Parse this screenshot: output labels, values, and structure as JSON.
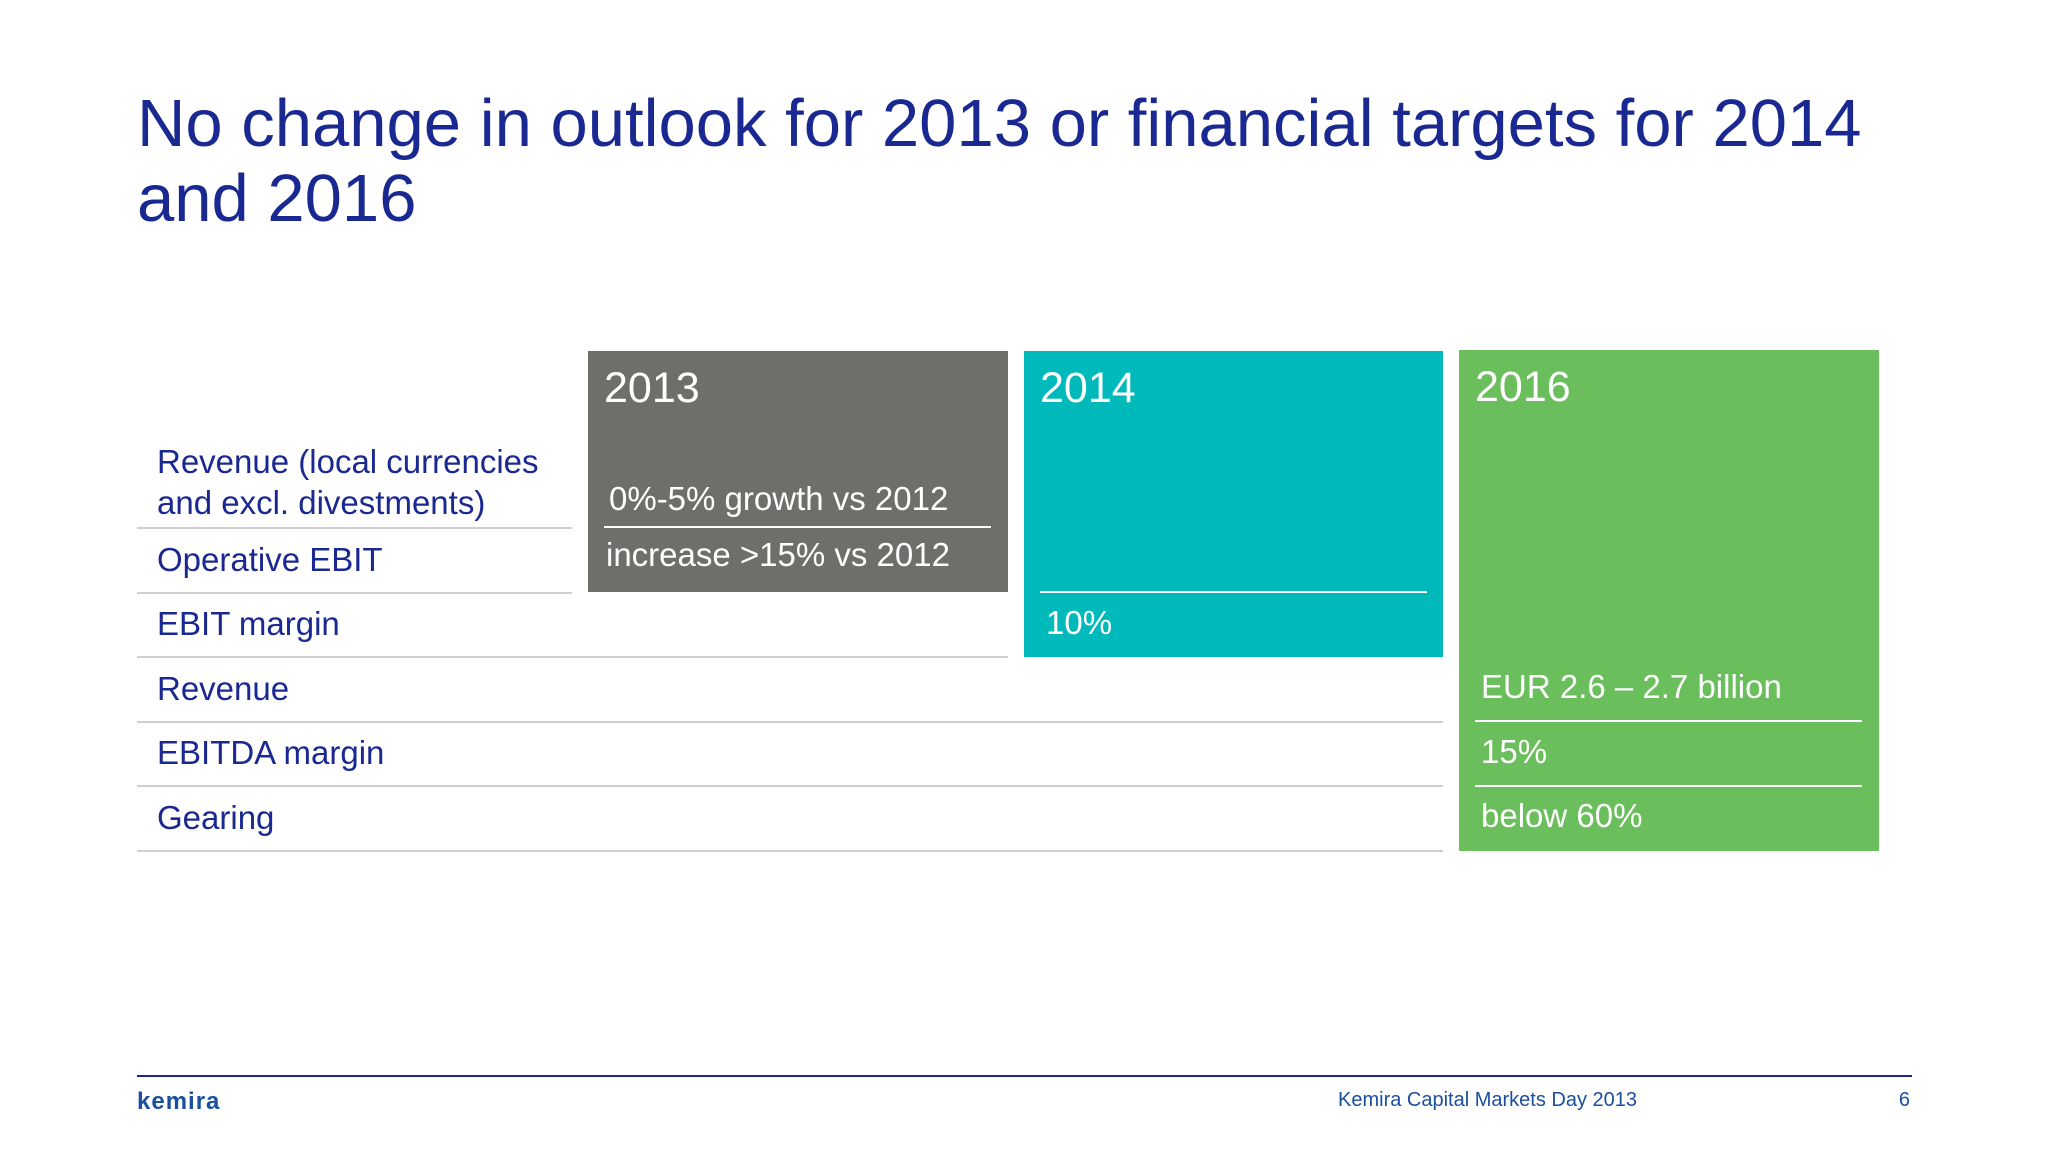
{
  "slide": {
    "title": "No change in outlook for 2013 or financial targets for 2014 and 2016"
  },
  "rows": [
    {
      "label": "Revenue (local currencies and excl. divestments)"
    },
    {
      "label": "Operative EBIT"
    },
    {
      "label": "EBIT margin"
    },
    {
      "label": "Revenue"
    },
    {
      "label": "EBITDA margin"
    },
    {
      "label": "Gearing"
    }
  ],
  "boxes": {
    "y2013": {
      "year": "2013",
      "color": "#6d6f6a",
      "revenue": "0%-5% growth vs 2012",
      "operative_ebit": "increase >15% vs 2012"
    },
    "y2014": {
      "year": "2014",
      "color": "#00b9bb",
      "ebit_margin": "10%"
    },
    "y2016": {
      "year": "2016",
      "color": "#6abe5c",
      "revenue": "EUR 2.6 – 2.7 billion",
      "ebitda_margin": "15%",
      "gearing": "below 60%"
    }
  },
  "footer": {
    "logo": "kemira",
    "event": "Kemira Capital Markets Day 2013",
    "page": "6"
  },
  "colors": {
    "title": "#1a2891",
    "label": "#1a2891"
  }
}
